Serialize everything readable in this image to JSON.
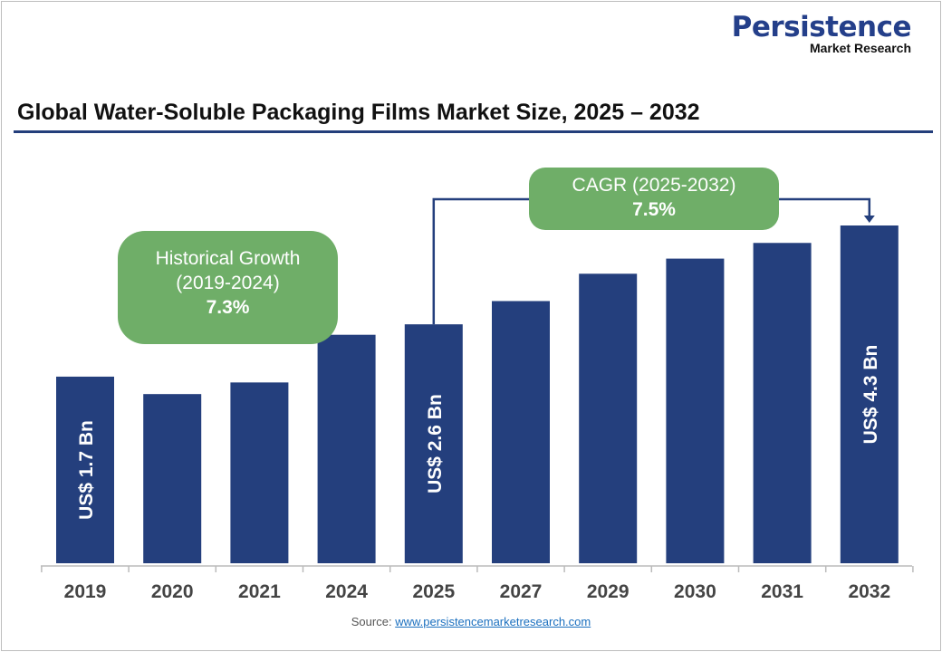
{
  "logo": {
    "line1": "Persistence",
    "line2": "Market Research"
  },
  "chart_data": {
    "type": "bar",
    "title": "Global Water-Soluble Packaging Films Market Size, 2025 – 2032",
    "categories": [
      "2019",
      "2020",
      "2021",
      "2024",
      "2025",
      "2027",
      "2029",
      "2030",
      "2031",
      "2032"
    ],
    "values": [
      1.7,
      1.4,
      1.6,
      2.42,
      2.6,
      3.0,
      3.47,
      3.73,
      4.0,
      4.3
    ],
    "data_labels": {
      "0": "US$ 1.7 Bn",
      "4": "US$ 2.6 Bn",
      "9": "US$ 4.3 Bn"
    },
    "unit": "US$ Bn",
    "bar_color": "#243f7d",
    "grid": false,
    "annotations": {
      "historical": {
        "label": "Historical Growth",
        "period": "(2019-2024)",
        "value": "7.3%"
      },
      "cagr": {
        "label": "CAGR (2025-2032)",
        "value": "7.5%"
      }
    },
    "annotation_color": "#6fae68"
  },
  "source": {
    "label": "Source:",
    "link": "www.persistencemarketresearch.com"
  }
}
